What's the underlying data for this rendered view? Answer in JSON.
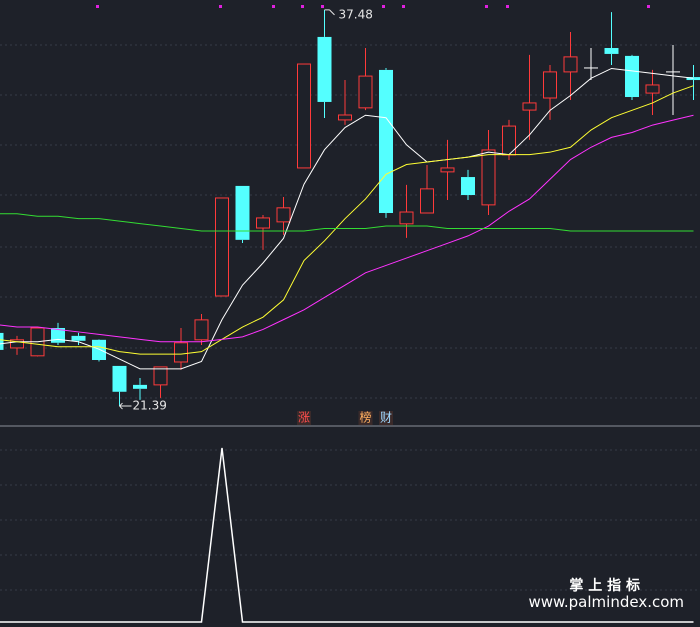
{
  "chart_data": [
    {
      "type": "candlestick",
      "ylim": [
        20.58,
        37.88
      ],
      "up_color": "#ff3a3a",
      "down_color": "#54ffff",
      "flat_color": "#ffffff",
      "open": [
        24.36,
        23.75,
        23.43,
        24.56,
        24.24,
        24.08,
        23.02,
        22.25,
        22.25,
        23.18,
        24.08,
        25.86,
        30.33,
        28.62,
        28.87,
        31.06,
        36.38,
        33.01,
        33.5,
        35.04,
        28.79,
        29.23,
        30.9,
        30.69,
        29.56,
        31.59,
        33.41,
        33.9,
        34.96,
        35.12,
        35.93,
        35.61,
        34.1,
        34.96,
        34.75
      ],
      "high": [
        24.48,
        24.24,
        24.6,
        24.77,
        24.36,
        24.1,
        23.02,
        22.53,
        22.98,
        24.56,
        25.13,
        29.84,
        30.33,
        29.15,
        29.88,
        35.28,
        37.48,
        34.63,
        35.93,
        35.12,
        30.37,
        31.18,
        32.2,
        30.98,
        32.6,
        33.01,
        35.65,
        35.24,
        36.58,
        35.93,
        37.39,
        35.65,
        35.04,
        36.05,
        35.24
      ],
      "low": [
        23.59,
        23.47,
        23.4,
        23.87,
        23.87,
        23.2,
        21.39,
        21.64,
        21.72,
        22.86,
        23.87,
        25.86,
        28.01,
        27.73,
        28.34,
        31.06,
        33.09,
        32.81,
        33.41,
        29.03,
        28.22,
        29.23,
        29.76,
        29.76,
        29.15,
        31.38,
        32.2,
        33.01,
        33.82,
        34.63,
        35.24,
        33.82,
        33.21,
        33.21,
        33.82
      ],
      "close": [
        23.67,
        24.08,
        24.56,
        23.96,
        24.04,
        23.26,
        21.97,
        22.09,
        22.98,
        23.96,
        24.89,
        29.84,
        28.14,
        29.03,
        29.44,
        35.28,
        33.74,
        33.21,
        34.79,
        29.23,
        29.27,
        30.21,
        31.06,
        29.96,
        31.79,
        32.76,
        33.7,
        34.96,
        35.57,
        35.12,
        35.69,
        33.94,
        34.43,
        34.96,
        34.63
      ],
      "series": [
        {
          "color": "#ffffff",
          "values": [
            23.9,
            24.0,
            24.0,
            24.1,
            24.0,
            23.7,
            23.3,
            22.9,
            22.9,
            22.9,
            23.2,
            24.9,
            26.3,
            27.2,
            28.2,
            30.4,
            31.8,
            32.7,
            33.2,
            33.1,
            32.0,
            31.3,
            31.4,
            31.5,
            31.7,
            31.6,
            32.4,
            33.4,
            34.0,
            34.7,
            35.1,
            35.0,
            34.9,
            34.8,
            34.7
          ]
        },
        {
          "color": "#ffff33",
          "values": [
            24.1,
            24.0,
            23.9,
            23.8,
            23.8,
            23.8,
            23.6,
            23.5,
            23.5,
            23.5,
            23.6,
            24.1,
            24.6,
            25.0,
            25.7,
            27.3,
            28.1,
            29.0,
            29.8,
            30.8,
            31.2,
            31.3,
            31.4,
            31.5,
            31.6,
            31.6,
            31.6,
            31.7,
            31.9,
            32.6,
            33.1,
            33.4,
            33.7,
            34.1,
            34.4
          ]
        },
        {
          "color": "#ff33ff",
          "values": [
            24.7,
            24.6,
            24.6,
            24.5,
            24.4,
            24.3,
            24.2,
            24.1,
            24.0,
            24.0,
            24.0,
            24.1,
            24.2,
            24.5,
            24.9,
            25.3,
            25.8,
            26.3,
            26.8,
            27.1,
            27.4,
            27.7,
            28.0,
            28.3,
            28.7,
            29.3,
            29.8,
            30.6,
            31.4,
            31.9,
            32.3,
            32.5,
            32.8,
            33.0,
            33.2
          ]
        },
        {
          "color": "#33dd33",
          "values": [
            29.2,
            29.2,
            29.1,
            29.1,
            29.0,
            29.0,
            28.9,
            28.8,
            28.7,
            28.6,
            28.5,
            28.5,
            28.5,
            28.5,
            28.5,
            28.5,
            28.6,
            28.6,
            28.6,
            28.7,
            28.7,
            28.7,
            28.6,
            28.6,
            28.6,
            28.6,
            28.6,
            28.6,
            28.5,
            28.5,
            28.5,
            28.5,
            28.5,
            28.5,
            28.5
          ]
        }
      ],
      "signals": [
        null,
        null,
        null,
        null,
        null,
        null,
        null,
        null,
        null,
        null,
        null,
        null,
        null,
        null,
        null,
        {
          "label": "涨",
          "color": "#ff4d4d"
        },
        null,
        null,
        {
          "label": "榜",
          "color": "#ffb060"
        },
        {
          "label": "财",
          "color": "#9fd8ff"
        },
        null,
        null,
        null,
        null,
        null,
        null,
        null,
        null,
        null,
        null,
        null,
        null,
        null,
        null,
        null
      ]
    },
    {
      "type": "line",
      "color": "#ffffff",
      "ylim": [
        0,
        1
      ],
      "values": [
        0,
        0,
        0,
        0,
        0,
        0,
        0,
        0,
        0,
        0,
        0,
        1,
        0,
        0,
        0,
        0,
        0,
        0,
        0,
        0,
        0,
        0,
        0,
        0,
        0,
        0,
        0,
        0,
        0,
        0,
        0,
        0,
        0,
        0,
        0
      ]
    }
  ],
  "watermark": [
    "掌 上 指 标",
    "www.palmindex.com"
  ]
}
